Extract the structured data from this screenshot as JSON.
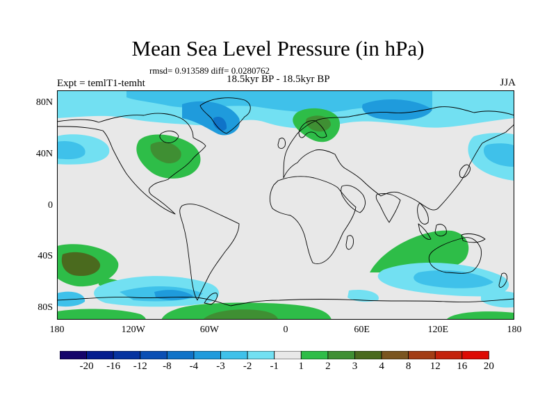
{
  "title": "Mean Sea Level Pressure (in hPa)",
  "stats": "rmsd= 0.913589 diff= 0.0280762",
  "period": "18.5kyr BP - 18.5kyr BP",
  "experiment": "Expt = temlT1-temht",
  "season": "JJA",
  "lon_ticks": [
    "180",
    "120W",
    "60W",
    "0",
    "60E",
    "120E",
    "180"
  ],
  "lat_ticks": [
    "80N",
    "40N",
    "0",
    "40S",
    "80S"
  ],
  "colorbar": {
    "labels": [
      "-20",
      "-16",
      "-12",
      "-8",
      "-4",
      "-3",
      "-2",
      "-1",
      "1",
      "2",
      "3",
      "4",
      "8",
      "12",
      "16",
      "20"
    ],
    "colors": [
      "#15046a",
      "#041c8e",
      "#0633a0",
      "#0a4fb4",
      "#0f73c8",
      "#1f9bdc",
      "#3fc1ea",
      "#72e0f2",
      "#e8e8e8",
      "#2ebd48",
      "#3f8f33",
      "#4a6a1e",
      "#7a5520",
      "#a33d15",
      "#c4220c",
      "#dd0a04"
    ]
  },
  "colors": {
    "neutral": "#e8e8e8",
    "land_outline": "#000000"
  }
}
